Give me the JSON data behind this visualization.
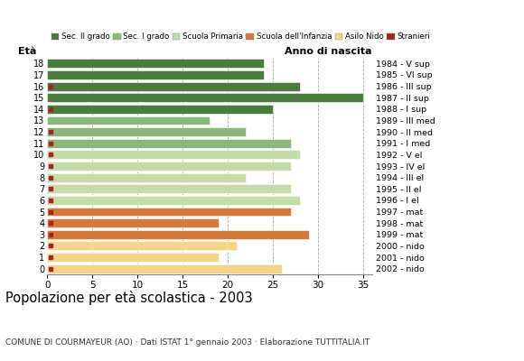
{
  "ages": [
    18,
    17,
    16,
    15,
    14,
    13,
    12,
    11,
    10,
    9,
    8,
    7,
    6,
    5,
    4,
    3,
    2,
    1,
    0
  ],
  "years": [
    "1984 - V sup",
    "1985 - VI sup",
    "1986 - III sup",
    "1987 - II sup",
    "1988 - I sup",
    "1989 - III med",
    "1990 - II med",
    "1991 - I med",
    "1992 - V el",
    "1993 - IV el",
    "1994 - III el",
    "1995 - II el",
    "1996 - I el",
    "1997 - mat",
    "1998 - mat",
    "1999 - mat",
    "2000 - nido",
    "2001 - nido",
    "2002 - nido"
  ],
  "values": [
    24,
    24,
    28,
    35,
    25,
    18,
    22,
    27,
    28,
    27,
    22,
    27,
    28,
    27,
    19,
    29,
    21,
    19,
    26
  ],
  "stranieri": [
    0,
    0,
    1,
    0,
    1,
    0,
    1,
    1,
    1,
    1,
    1,
    1,
    1,
    1,
    1,
    1,
    1,
    1,
    1
  ],
  "bar_colors": [
    "#4a7c3f",
    "#4a7c3f",
    "#4a7c3f",
    "#4a7c3f",
    "#4a7c3f",
    "#8ab87a",
    "#8ab87a",
    "#8ab87a",
    "#c5dba8",
    "#c5dba8",
    "#c5dba8",
    "#c5dba8",
    "#c5dba8",
    "#d47a3a",
    "#d47a3a",
    "#d47a3a",
    "#f5d48a",
    "#f5d48a",
    "#f5d48a"
  ],
  "legend_labels": [
    "Sec. II grado",
    "Sec. I grado",
    "Scuola Primaria",
    "Scuola dell'Infanzia",
    "Asilo Nido",
    "Stranieri"
  ],
  "legend_colors": [
    "#4a7c3f",
    "#8ab87a",
    "#c5dba8",
    "#d47a3a",
    "#f5d48a",
    "#aa2222"
  ],
  "stranieri_color": "#aa2222",
  "title": "Popolazione per età scolastica - 2003",
  "subtitle": "COMUNE DI COURMAYEUR (AO) · Dati ISTAT 1° gennaio 2003 · Elaborazione TUTTITALIA.IT",
  "xlabel_eta": "Età",
  "xlabel_anno": "Anno di nascita",
  "xlim": [
    0,
    36
  ],
  "grid_ticks": [
    0,
    5,
    10,
    15,
    20,
    25,
    30,
    35
  ],
  "bg_color": "#ffffff",
  "bar_height": 0.78
}
